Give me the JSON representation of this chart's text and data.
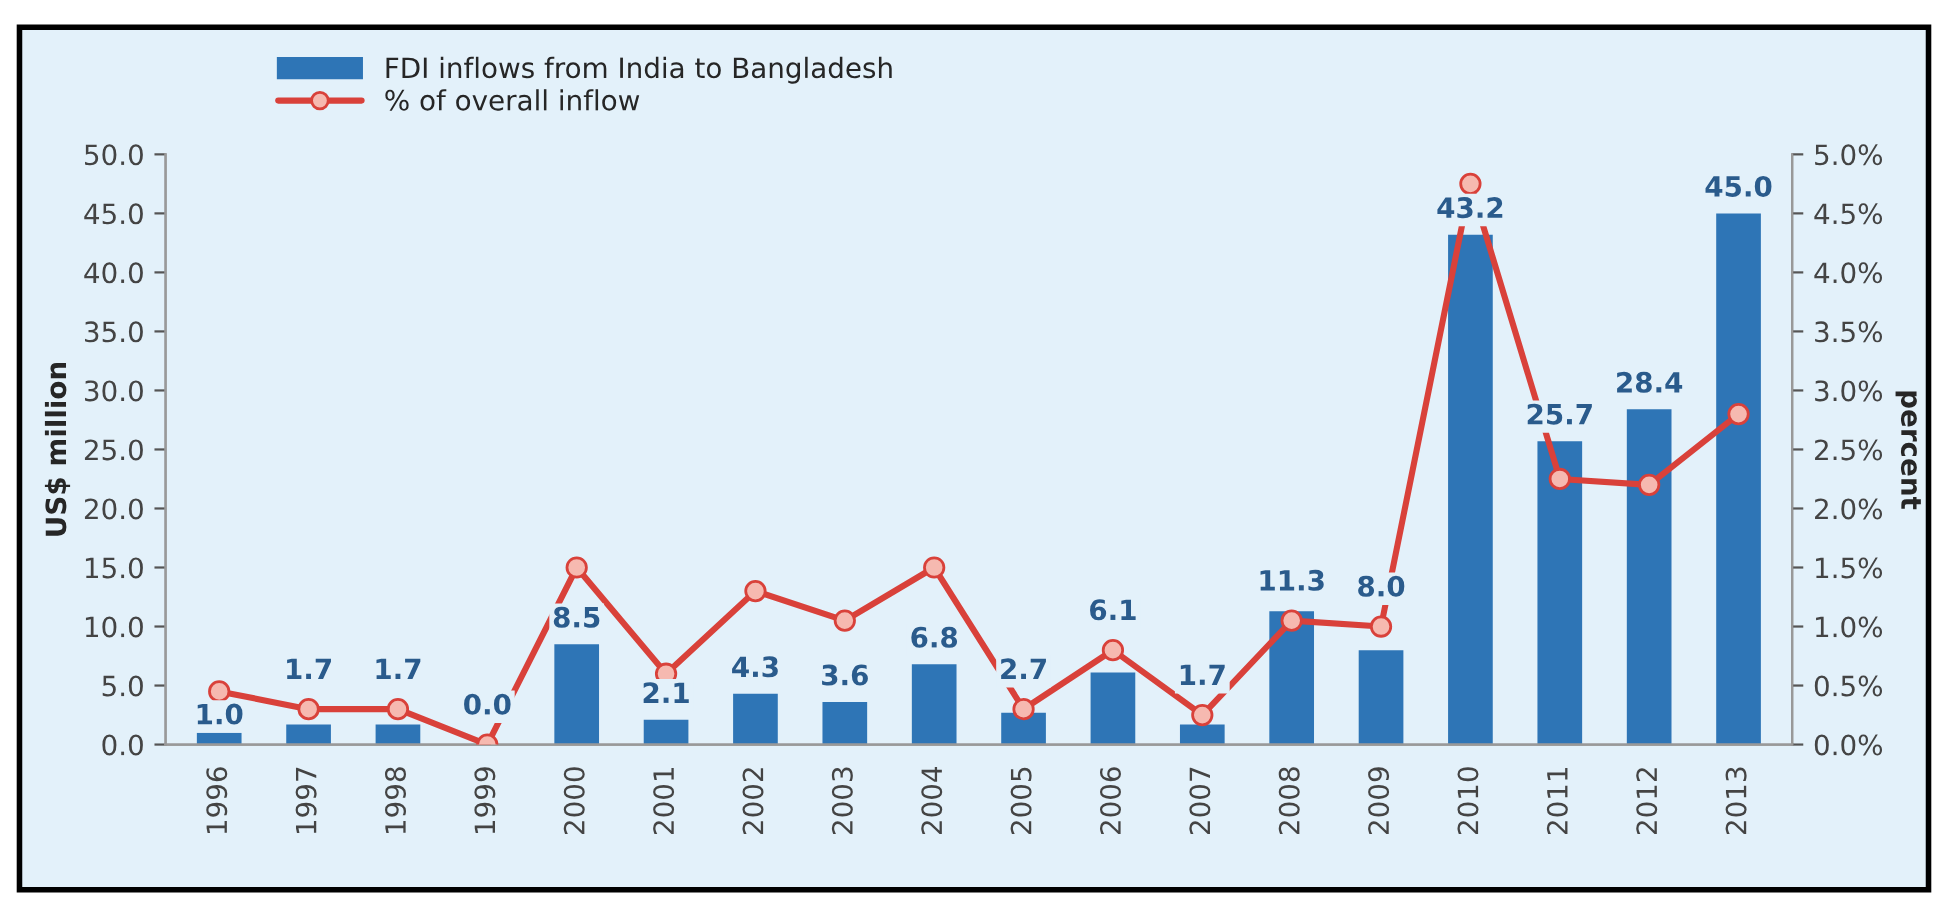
{
  "chart_data": {
    "type": "bar",
    "ylabel": "US$ million",
    "y2label": "percent",
    "categories": [
      "1996",
      "1997",
      "1998",
      "1999",
      "2000",
      "2001",
      "2002",
      "2003",
      "2004",
      "2005",
      "2006",
      "2007",
      "2008",
      "2009",
      "2010",
      "2011",
      "2012",
      "2013"
    ],
    "series": [
      {
        "name": "FDI inflows from India to Bangladesh",
        "color": "#2e75b6",
        "values": [
          1.0,
          1.7,
          1.7,
          0.0,
          8.5,
          2.1,
          4.3,
          3.6,
          6.8,
          2.7,
          6.1,
          1.7,
          11.3,
          8.0,
          43.2,
          25.7,
          28.4,
          45.0
        ],
        "value_labels": [
          "1.0",
          "1.7",
          "1.7",
          "0.0",
          "8.5",
          "2.1",
          "4.3",
          "3.6",
          "6.8",
          "2.7",
          "6.1",
          "1.7",
          "11.3",
          "8.0",
          "43.2",
          "25.7",
          "28.4",
          "45.0"
        ]
      },
      {
        "name": "% of overall inflow",
        "type": "line",
        "axis": "y2",
        "color": "#d9413a",
        "marker": "circle",
        "values": [
          0.45,
          0.3,
          0.3,
          0.0,
          1.5,
          0.6,
          1.3,
          1.05,
          1.5,
          0.3,
          0.8,
          0.25,
          1.05,
          1.0,
          4.75,
          2.25,
          2.2,
          2.8
        ]
      }
    ],
    "ylim": [
      0,
      50
    ],
    "yticks": [
      {
        "value": 0,
        "label": "0.0"
      },
      {
        "value": 5,
        "label": "5.0"
      },
      {
        "value": 10,
        "label": "10.0"
      },
      {
        "value": 15,
        "label": "15.0"
      },
      {
        "value": 20,
        "label": "20.0"
      },
      {
        "value": 25,
        "label": "25.0"
      },
      {
        "value": 30,
        "label": "30.0"
      },
      {
        "value": 35,
        "label": "35.0"
      },
      {
        "value": 40,
        "label": "40.0"
      },
      {
        "value": 45,
        "label": "45.0"
      },
      {
        "value": 50,
        "label": "50.0"
      }
    ],
    "y2lim": [
      0,
      5
    ],
    "y2ticks": [
      {
        "value": 0,
        "label": "0.0%"
      },
      {
        "value": 0.5,
        "label": "0.5%"
      },
      {
        "value": 1,
        "label": "1.0%"
      },
      {
        "value": 1.5,
        "label": "1.5%"
      },
      {
        "value": 2,
        "label": "2.0%"
      },
      {
        "value": 2.5,
        "label": "2.5%"
      },
      {
        "value": 3,
        "label": "3.0%"
      },
      {
        "value": 3.5,
        "label": "3.5%"
      },
      {
        "value": 4,
        "label": "4.0%"
      },
      {
        "value": 4.5,
        "label": "4.5%"
      },
      {
        "value": 5,
        "label": "5.0%"
      }
    ],
    "grid": false,
    "legend": "top left"
  }
}
